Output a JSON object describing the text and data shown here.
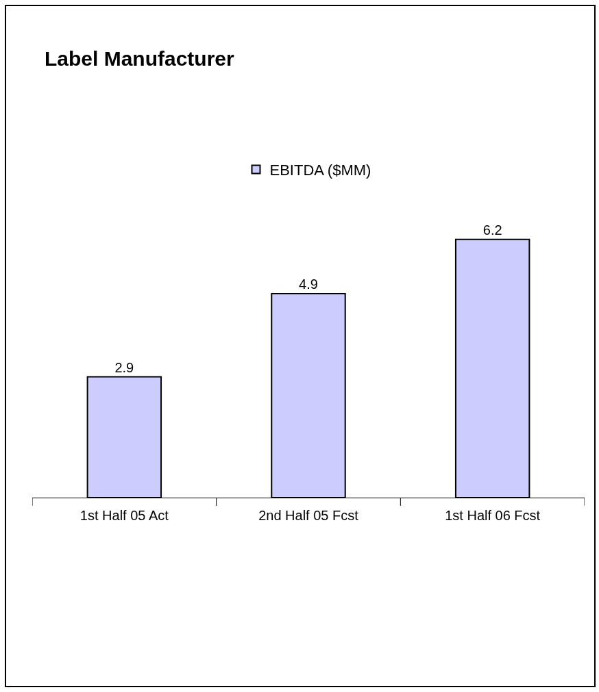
{
  "chart_data": {
    "type": "bar",
    "title": "Label Manufacturer",
    "categories": [
      "1st Half 05 Act",
      "2nd Half 05 Fcst",
      "1st Half 06 Fcst"
    ],
    "series": [
      {
        "name": "EBITDA ($MM)",
        "color": "#ccccff",
        "values": [
          2.9,
          4.9,
          6.2
        ]
      }
    ],
    "data_labels": true,
    "legend": "top",
    "tick_labels": "x"
  }
}
